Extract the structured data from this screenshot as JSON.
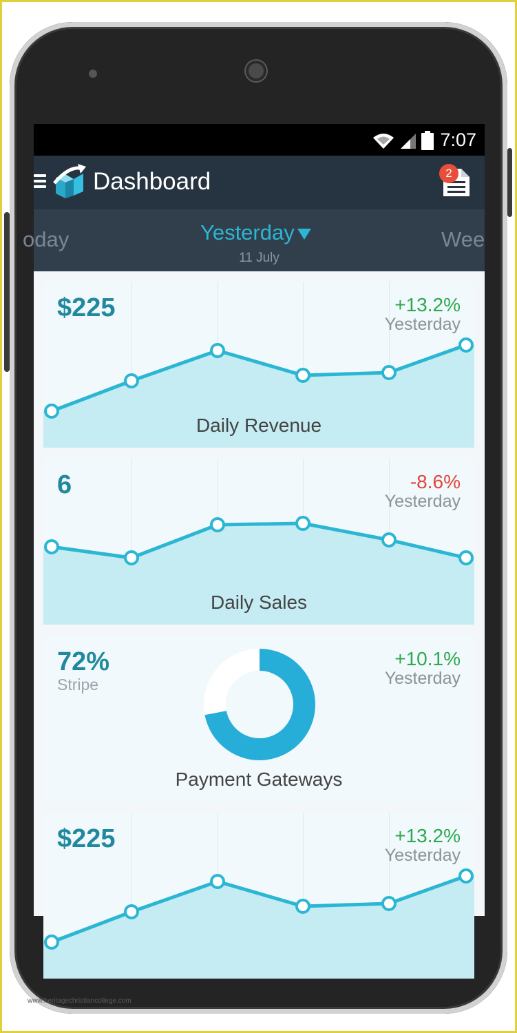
{
  "status_bar": {
    "time": "7:07"
  },
  "app_bar": {
    "title": "Dashboard",
    "notification_count": "2"
  },
  "date_tabs": {
    "prev": "oday",
    "current": "Yesterday",
    "current_date": "11 July",
    "next": "Wee"
  },
  "cards": [
    {
      "value": "$225",
      "change": "+13.2%",
      "period": "Yesterday",
      "title": "Daily Revenue"
    },
    {
      "value": "6",
      "change": "-8.6%",
      "period": "Yesterday",
      "title": "Daily Sales"
    },
    {
      "value": "72%",
      "subtitle": "Stripe",
      "change": "+10.1%",
      "period": "Yesterday",
      "title": "Payment Gateways"
    },
    {
      "value": "$225",
      "change": "+13.2%",
      "period": "Yesterday"
    }
  ],
  "colors": {
    "accent": "#2bb6d3",
    "positive": "#2ea84e",
    "negative": "#e0473a",
    "app_bar": "#263340",
    "date_bar": "#313e4b"
  },
  "chart_data": [
    {
      "type": "area",
      "series": [
        {
          "values": [
            1.1,
            2.2,
            3.3,
            2.4,
            2.5,
            3.5
          ]
        }
      ]
    },
    {
      "type": "area",
      "series": [
        {
          "values": [
            2.6,
            2.2,
            3.4,
            3.45,
            2.85,
            2.2
          ]
        }
      ]
    },
    {
      "type": "pie",
      "values": [
        72,
        28
      ]
    },
    {
      "type": "area",
      "series": [
        {
          "values": [
            1.1,
            2.2,
            3.3,
            2.4,
            2.5,
            3.5
          ]
        }
      ]
    }
  ]
}
